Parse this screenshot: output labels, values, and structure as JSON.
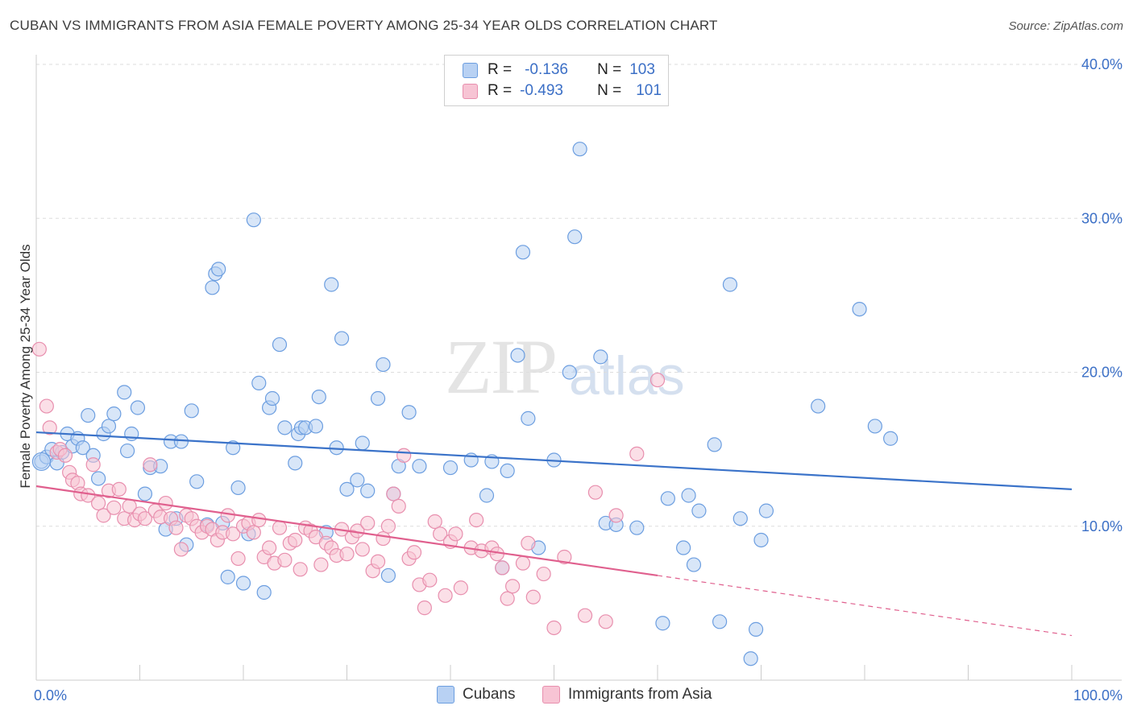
{
  "title": "CUBAN VS IMMIGRANTS FROM ASIA FEMALE POVERTY AMONG 25-34 YEAR OLDS CORRELATION CHART",
  "source": "Source: ZipAtlas.com",
  "watermark": {
    "zip": "ZIP",
    "atlas": "atlas"
  },
  "legend": {
    "r_label": "R =",
    "n_label": "N =",
    "rows": [
      {
        "r": "-0.136",
        "n": "103",
        "fill": "#b8d1f3",
        "stroke": "#6c9ee0"
      },
      {
        "r": "-0.493",
        "n": "101",
        "fill": "#f7c4d4",
        "stroke": "#e88fae"
      }
    ]
  },
  "bottom_legend": [
    {
      "label": "Cubans",
      "fill": "#b8d1f3",
      "stroke": "#6c9ee0"
    },
    {
      "label": "Immigrants from Asia",
      "fill": "#f7c4d4",
      "stroke": "#e88fae"
    }
  ],
  "chart_data": {
    "type": "scatter",
    "ylabel": "Female Poverty Among 25-34 Year Olds",
    "xlim": [
      0,
      100
    ],
    "ylim": [
      0,
      40
    ],
    "x_tick_labels": [
      {
        "value": 0,
        "label": "0.0%"
      },
      {
        "value": 100,
        "label": "100.0%"
      }
    ],
    "y_tick_labels": [
      {
        "value": 10,
        "label": "10.0%"
      },
      {
        "value": 20,
        "label": "20.0%"
      },
      {
        "value": 30,
        "label": "30.0%"
      },
      {
        "value": 40,
        "label": "40.0%"
      }
    ],
    "grid": true,
    "colors": {
      "blue": "#3b73c9",
      "pink": "#e0608e",
      "grid": "#dddddd"
    },
    "series": [
      {
        "name": "Cubans",
        "color": "#6c9ee0",
        "fill": "#b8d1f3",
        "trend": {
          "x0": 0,
          "y0": 16.1,
          "x1": 100,
          "y1": 12.4
        },
        "points": [
          [
            0.5,
            14.2
          ],
          [
            1.0,
            14.5
          ],
          [
            1.5,
            15.0
          ],
          [
            2.0,
            14.1
          ],
          [
            2.5,
            14.8
          ],
          [
            3.0,
            16.0
          ],
          [
            3.5,
            15.2
          ],
          [
            4.0,
            15.7
          ],
          [
            4.5,
            15.1
          ],
          [
            5.0,
            17.2
          ],
          [
            5.5,
            14.6
          ],
          [
            6.0,
            13.1
          ],
          [
            6.5,
            16.0
          ],
          [
            7.0,
            16.5
          ],
          [
            7.5,
            17.3
          ],
          [
            8.5,
            18.7
          ],
          [
            8.8,
            14.9
          ],
          [
            9.2,
            16.0
          ],
          [
            9.8,
            17.7
          ],
          [
            10.5,
            12.1
          ],
          [
            11.0,
            13.8
          ],
          [
            12.0,
            13.9
          ],
          [
            12.5,
            9.8
          ],
          [
            13.0,
            15.5
          ],
          [
            13.5,
            10.5
          ],
          [
            14.0,
            15.5
          ],
          [
            14.5,
            8.8
          ],
          [
            15.0,
            17.5
          ],
          [
            15.5,
            12.9
          ],
          [
            16.5,
            10.1
          ],
          [
            17.0,
            25.5
          ],
          [
            17.3,
            26.4
          ],
          [
            17.6,
            26.7
          ],
          [
            18.0,
            10.2
          ],
          [
            18.5,
            6.7
          ],
          [
            19.0,
            15.1
          ],
          [
            19.5,
            12.5
          ],
          [
            20.0,
            6.3
          ],
          [
            20.5,
            9.5
          ],
          [
            21.0,
            29.9
          ],
          [
            21.5,
            19.3
          ],
          [
            22.0,
            5.7
          ],
          [
            22.5,
            17.7
          ],
          [
            22.8,
            18.3
          ],
          [
            23.5,
            21.8
          ],
          [
            24.0,
            16.4
          ],
          [
            25.0,
            14.1
          ],
          [
            25.3,
            16.0
          ],
          [
            25.6,
            16.4
          ],
          [
            26.0,
            16.4
          ],
          [
            27.0,
            16.5
          ],
          [
            27.3,
            18.4
          ],
          [
            28.0,
            9.6
          ],
          [
            28.5,
            25.7
          ],
          [
            29.0,
            15.1
          ],
          [
            29.5,
            22.2
          ],
          [
            30.0,
            12.4
          ],
          [
            31.0,
            13.0
          ],
          [
            31.5,
            15.4
          ],
          [
            32.0,
            12.3
          ],
          [
            33.0,
            18.3
          ],
          [
            33.5,
            20.5
          ],
          [
            34.0,
            6.8
          ],
          [
            34.5,
            12.1
          ],
          [
            35.0,
            13.9
          ],
          [
            36.0,
            17.4
          ],
          [
            37.0,
            13.9
          ],
          [
            40.0,
            13.8
          ],
          [
            42.0,
            14.3
          ],
          [
            43.5,
            12.0
          ],
          [
            44.0,
            14.2
          ],
          [
            45.0,
            7.3
          ],
          [
            45.5,
            13.6
          ],
          [
            47.0,
            27.8
          ],
          [
            46.5,
            21.1
          ],
          [
            47.5,
            17.0
          ],
          [
            48.5,
            8.6
          ],
          [
            50.0,
            14.3
          ],
          [
            51.5,
            20.0
          ],
          [
            52.0,
            28.8
          ],
          [
            52.5,
            34.5
          ],
          [
            54.5,
            21.0
          ],
          [
            55.0,
            10.2
          ],
          [
            56.0,
            10.1
          ],
          [
            58.0,
            9.9
          ],
          [
            60.5,
            3.7
          ],
          [
            61.0,
            11.8
          ],
          [
            62.5,
            8.6
          ],
          [
            63.0,
            12.0
          ],
          [
            63.5,
            7.5
          ],
          [
            64.0,
            11.0
          ],
          [
            65.5,
            15.3
          ],
          [
            66.0,
            3.8
          ],
          [
            67.0,
            25.7
          ],
          [
            68.0,
            10.5
          ],
          [
            69.0,
            1.4
          ],
          [
            70.0,
            9.1
          ],
          [
            70.5,
            11.0
          ],
          [
            69.5,
            3.3
          ],
          [
            75.5,
            17.8
          ],
          [
            79.5,
            24.1
          ],
          [
            81.0,
            16.5
          ],
          [
            82.5,
            15.7
          ]
        ]
      },
      {
        "name": "Immigrants from Asia",
        "color": "#e88fae",
        "fill": "#f7c4d4",
        "trend": {
          "x0": 0,
          "y0": 12.6,
          "x1": 60,
          "y1": 6.8
        },
        "trend_dashed": {
          "x0": 60,
          "y0": 6.8,
          "x1": 100,
          "y1": 2.9
        },
        "points": [
          [
            0.3,
            21.5
          ],
          [
            1.0,
            17.8
          ],
          [
            1.3,
            16.4
          ],
          [
            2.0,
            14.8
          ],
          [
            2.3,
            15.0
          ],
          [
            2.8,
            14.6
          ],
          [
            3.2,
            13.5
          ],
          [
            3.5,
            13.0
          ],
          [
            4.0,
            12.8
          ],
          [
            4.3,
            12.1
          ],
          [
            5.0,
            12.0
          ],
          [
            5.5,
            14.0
          ],
          [
            6.0,
            11.5
          ],
          [
            6.5,
            10.7
          ],
          [
            7.0,
            12.3
          ],
          [
            7.5,
            11.2
          ],
          [
            8.0,
            12.4
          ],
          [
            8.5,
            10.5
          ],
          [
            9.0,
            11.3
          ],
          [
            9.5,
            10.4
          ],
          [
            10.0,
            10.8
          ],
          [
            10.5,
            10.5
          ],
          [
            11.0,
            14.0
          ],
          [
            11.5,
            11.0
          ],
          [
            12.0,
            10.6
          ],
          [
            12.5,
            11.5
          ],
          [
            13.0,
            10.5
          ],
          [
            13.5,
            9.9
          ],
          [
            14.0,
            8.5
          ],
          [
            14.5,
            10.7
          ],
          [
            15.0,
            10.5
          ],
          [
            15.5,
            10.0
          ],
          [
            16.0,
            9.6
          ],
          [
            16.5,
            10.0
          ],
          [
            17.0,
            9.8
          ],
          [
            17.5,
            9.1
          ],
          [
            18.0,
            9.6
          ],
          [
            18.5,
            10.7
          ],
          [
            19.0,
            9.5
          ],
          [
            19.5,
            7.9
          ],
          [
            20.0,
            10.0
          ],
          [
            20.5,
            10.2
          ],
          [
            21.0,
            9.6
          ],
          [
            21.5,
            10.4
          ],
          [
            22.0,
            8.0
          ],
          [
            22.5,
            8.6
          ],
          [
            23.0,
            7.6
          ],
          [
            23.5,
            9.9
          ],
          [
            24.0,
            7.8
          ],
          [
            24.5,
            8.9
          ],
          [
            25.0,
            9.1
          ],
          [
            25.5,
            7.2
          ],
          [
            26.0,
            9.9
          ],
          [
            26.5,
            9.7
          ],
          [
            27.0,
            9.3
          ],
          [
            27.5,
            7.5
          ],
          [
            28.0,
            8.9
          ],
          [
            28.5,
            8.6
          ],
          [
            29.0,
            8.1
          ],
          [
            29.5,
            9.8
          ],
          [
            30.0,
            8.2
          ],
          [
            30.5,
            9.3
          ],
          [
            31.0,
            9.7
          ],
          [
            31.5,
            8.5
          ],
          [
            32.0,
            10.2
          ],
          [
            32.5,
            7.1
          ],
          [
            33.0,
            7.7
          ],
          [
            33.5,
            9.2
          ],
          [
            34.0,
            10.0
          ],
          [
            34.5,
            12.1
          ],
          [
            35.0,
            11.3
          ],
          [
            35.5,
            14.6
          ],
          [
            36.0,
            7.9
          ],
          [
            36.5,
            8.3
          ],
          [
            37.0,
            6.2
          ],
          [
            37.5,
            4.7
          ],
          [
            38.0,
            6.5
          ],
          [
            38.5,
            10.3
          ],
          [
            39.0,
            9.5
          ],
          [
            39.5,
            5.5
          ],
          [
            40.0,
            9.0
          ],
          [
            40.5,
            9.5
          ],
          [
            41.0,
            6.0
          ],
          [
            42.0,
            8.6
          ],
          [
            42.5,
            10.4
          ],
          [
            43.0,
            8.4
          ],
          [
            44.0,
            8.6
          ],
          [
            44.5,
            8.2
          ],
          [
            45.0,
            7.3
          ],
          [
            45.5,
            5.3
          ],
          [
            46.0,
            6.1
          ],
          [
            47.0,
            7.6
          ],
          [
            47.5,
            8.9
          ],
          [
            48.0,
            5.4
          ],
          [
            49.0,
            6.9
          ],
          [
            50.0,
            3.4
          ],
          [
            51.0,
            8.0
          ],
          [
            53.0,
            4.2
          ],
          [
            54.0,
            12.2
          ],
          [
            55.0,
            3.8
          ],
          [
            56.0,
            10.7
          ],
          [
            58.0,
            14.7
          ],
          [
            60.0,
            19.5
          ]
        ]
      }
    ]
  }
}
